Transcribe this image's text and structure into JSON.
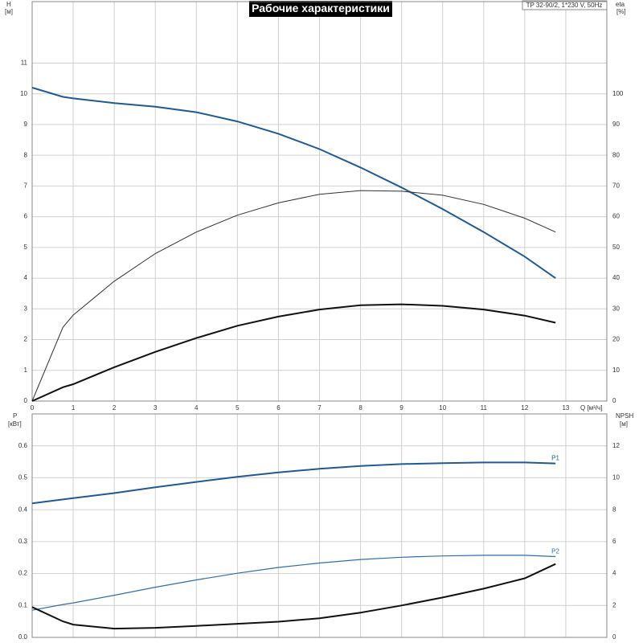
{
  "chart_data": [
    {
      "type": "line",
      "title": "Рабочие характеристики",
      "subtitle": "TP 32-90/2, 1*230 V, 50Hz",
      "ylabel": "H",
      "yunit": "[м]",
      "y2label": "eta",
      "y2unit": "[%]",
      "xlabel": "Q [м³/ч]",
      "x": [
        0,
        0.75,
        1,
        2,
        3,
        4,
        5,
        6,
        7,
        8,
        9,
        10,
        11,
        12,
        12.75
      ],
      "xlim": [
        0,
        14
      ],
      "xticks": [
        0,
        1,
        2,
        3,
        4,
        5,
        6,
        7,
        8,
        9,
        10,
        11,
        12,
        13
      ],
      "ylim": [
        0,
        13
      ],
      "yticks": [
        0,
        1,
        2,
        3,
        4,
        5,
        6,
        7,
        8,
        9,
        10,
        11
      ],
      "y2lim": [
        0,
        130
      ],
      "y2ticks": [
        0,
        10,
        20,
        30,
        40,
        50,
        60,
        70,
        80,
        90,
        100
      ],
      "grid": true,
      "series": [
        {
          "color": "#1f5a96",
          "values": [
            10.2,
            9.9,
            9.85,
            9.7,
            9.58,
            9.4,
            9.1,
            8.7,
            8.2,
            7.6,
            6.95,
            6.25,
            5.5,
            4.7,
            4.0
          ]
        },
        {
          "color": "#333333",
          "axis": "y2",
          "values": [
            0,
            24,
            28,
            39,
            48,
            55,
            60.5,
            64.5,
            67.3,
            68.5,
            68.3,
            67,
            64,
            59.5,
            55
          ]
        },
        {
          "color": "#111111",
          "values": [
            0,
            0.45,
            0.55,
            1.1,
            1.6,
            2.05,
            2.45,
            2.75,
            2.98,
            3.12,
            3.15,
            3.1,
            2.98,
            2.78,
            2.55
          ]
        }
      ]
    },
    {
      "type": "line",
      "ylabel": "P",
      "yunit": "[кВт]",
      "y2label": "NPSH",
      "y2unit": "[м]",
      "x": [
        0,
        0.75,
        1,
        2,
        3,
        4,
        5,
        6,
        7,
        8,
        9,
        10,
        11,
        12,
        12.75
      ],
      "xlim": [
        0,
        14
      ],
      "ylim": [
        0,
        0.7
      ],
      "yticks": [
        {
          "value": 0,
          "label": "0.0"
        },
        0.1,
        0.2,
        0.3,
        0.4,
        0.5,
        0.6
      ],
      "y2lim": [
        0,
        14
      ],
      "y2ticks": [
        0,
        2,
        4,
        6,
        8,
        10,
        12
      ],
      "grid": true,
      "series": [
        {
          "name": "P1",
          "color": "#1f5a96",
          "values": [
            0.42,
            0.432,
            0.436,
            0.452,
            0.47,
            0.487,
            0.503,
            0.517,
            0.528,
            0.537,
            0.543,
            0.546,
            0.548,
            0.548,
            0.545
          ]
        },
        {
          "name": "P2",
          "color": "#2e6fb0",
          "values": [
            0.085,
            0.103,
            0.108,
            0.132,
            0.157,
            0.18,
            0.201,
            0.219,
            0.233,
            0.244,
            0.251,
            0.255,
            0.257,
            0.257,
            0.253
          ]
        },
        {
          "color": "#111111",
          "axis": "y2",
          "values": [
            1.9,
            1.0,
            0.8,
            0.55,
            0.6,
            0.72,
            0.85,
            0.98,
            1.2,
            1.55,
            2.0,
            2.5,
            3.05,
            3.7,
            4.6
          ]
        }
      ]
    }
  ]
}
